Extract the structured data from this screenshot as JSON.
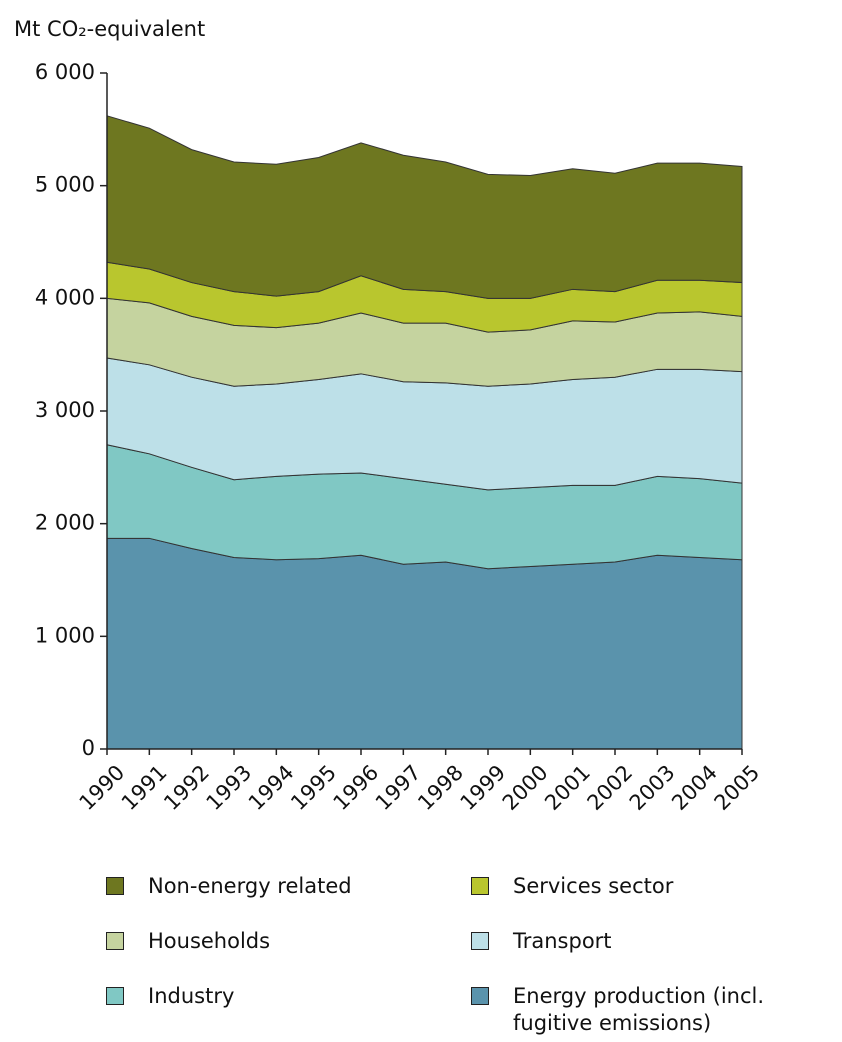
{
  "chart_data": {
    "type": "stacked_area",
    "y_label": "Mt CO₂-equivalent",
    "categories": [
      "1990",
      "1991",
      "1992",
      "1993",
      "1994",
      "1995",
      "1996",
      "1997",
      "1998",
      "1999",
      "2000",
      "2001",
      "2002",
      "2003",
      "2004",
      "2005"
    ],
    "ylim": [
      0,
      6000
    ],
    "yticks": [
      {
        "value": 0,
        "label": "0"
      },
      {
        "value": 1000,
        "label": "1 000"
      },
      {
        "value": 2000,
        "label": "2 000"
      },
      {
        "value": 3000,
        "label": "3 000"
      },
      {
        "value": 4000,
        "label": "4 000"
      },
      {
        "value": 5000,
        "label": "5 000"
      },
      {
        "value": 6000,
        "label": "6 000"
      }
    ],
    "series": [
      {
        "name": "Energy production (incl. fugitive emissions)",
        "color": "#5a93ac",
        "values": [
          1870,
          1870,
          1780,
          1700,
          1680,
          1690,
          1720,
          1640,
          1660,
          1600,
          1620,
          1640,
          1660,
          1720,
          1700,
          1680
        ]
      },
      {
        "name": "Industry",
        "color": "#80c8c4",
        "values": [
          830,
          750,
          720,
          690,
          740,
          750,
          730,
          760,
          690,
          700,
          700,
          700,
          680,
          700,
          700,
          680
        ]
      },
      {
        "name": "Transport",
        "color": "#bde0e8",
        "values": [
          770,
          790,
          800,
          830,
          820,
          840,
          880,
          860,
          900,
          920,
          920,
          940,
          960,
          950,
          970,
          990
        ]
      },
      {
        "name": "Households",
        "color": "#c5d39f",
        "values": [
          530,
          550,
          540,
          540,
          500,
          500,
          540,
          520,
          530,
          480,
          480,
          520,
          490,
          500,
          510,
          490
        ]
      },
      {
        "name": "Services sector",
        "color": "#b9c62e",
        "values": [
          320,
          300,
          300,
          300,
          280,
          280,
          330,
          300,
          280,
          300,
          280,
          280,
          270,
          290,
          280,
          300
        ]
      },
      {
        "name": "Non-energy related",
        "color": "#6e7720",
        "values": [
          1300,
          1250,
          1180,
          1150,
          1170,
          1190,
          1180,
          1190,
          1150,
          1100,
          1090,
          1070,
          1050,
          1040,
          1040,
          1030
        ]
      }
    ]
  }
}
